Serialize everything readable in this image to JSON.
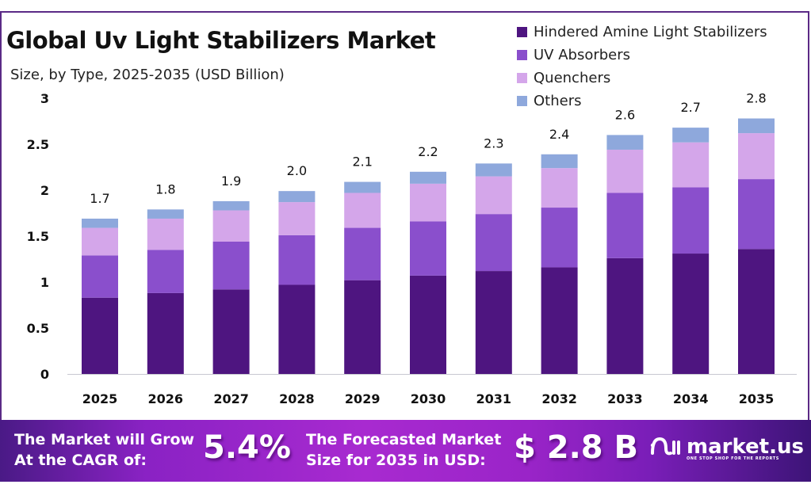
{
  "header": {
    "title": "Global Uv Light Stabilizers Market",
    "subtitle": "Size, by Type, 2025-2035 (USD Billion)"
  },
  "chart_data": {
    "type": "bar",
    "stacked": true,
    "title": "Global Uv Light Stabilizers Market",
    "subtitle": "Size, by Type, 2025-2035 (USD Billion)",
    "xlabel": "",
    "ylabel": "USD Billion",
    "ylim": [
      0,
      3
    ],
    "yticks": [
      "0",
      "0.5",
      "1",
      "1.5",
      "2",
      "2.5",
      "3"
    ],
    "ytick_values": [
      0,
      0.5,
      1,
      1.5,
      2,
      2.5,
      3
    ],
    "grid": false,
    "legend_position": "top-right",
    "categories": [
      "2025",
      "2026",
      "2027",
      "2028",
      "2029",
      "2030",
      "2031",
      "2032",
      "2033",
      "2034",
      "2035"
    ],
    "series": [
      {
        "name": "Hindered Amine Light Stabilizers",
        "color": "#4e1580",
        "values": [
          0.83,
          0.88,
          0.92,
          0.97,
          1.02,
          1.07,
          1.12,
          1.16,
          1.26,
          1.31,
          1.36
        ]
      },
      {
        "name": "UV Absorbers",
        "color": "#8a4fcc",
        "values": [
          0.46,
          0.47,
          0.52,
          0.54,
          0.57,
          0.59,
          0.62,
          0.65,
          0.71,
          0.72,
          0.76
        ]
      },
      {
        "name": "Quenchers",
        "color": "#d4a6ea",
        "values": [
          0.3,
          0.34,
          0.34,
          0.36,
          0.38,
          0.41,
          0.41,
          0.43,
          0.47,
          0.49,
          0.5
        ]
      },
      {
        "name": "Others",
        "color": "#8ea8dc",
        "values": [
          0.1,
          0.1,
          0.1,
          0.12,
          0.12,
          0.13,
          0.14,
          0.15,
          0.16,
          0.16,
          0.16
        ]
      }
    ],
    "totals": [
      "1.7",
      "1.8",
      "1.9",
      "2.0",
      "2.1",
      "2.2",
      "2.3",
      "2.4",
      "2.6",
      "2.7",
      "2.8"
    ]
  },
  "banner": {
    "cagr_text_line1": "The Market will Grow",
    "cagr_text_line2": "At the CAGR of:",
    "cagr_value": "5.4%",
    "forecast_text_line1": "The Forecasted Market",
    "forecast_text_line2": "Size for 2035 in USD:",
    "forecast_value": "$ 2.8 B",
    "logo_name": "market.us",
    "logo_tagline": "ONE STOP SHOP FOR THE REPORTS",
    "logo_icon": "market-us-logo-icon"
  }
}
